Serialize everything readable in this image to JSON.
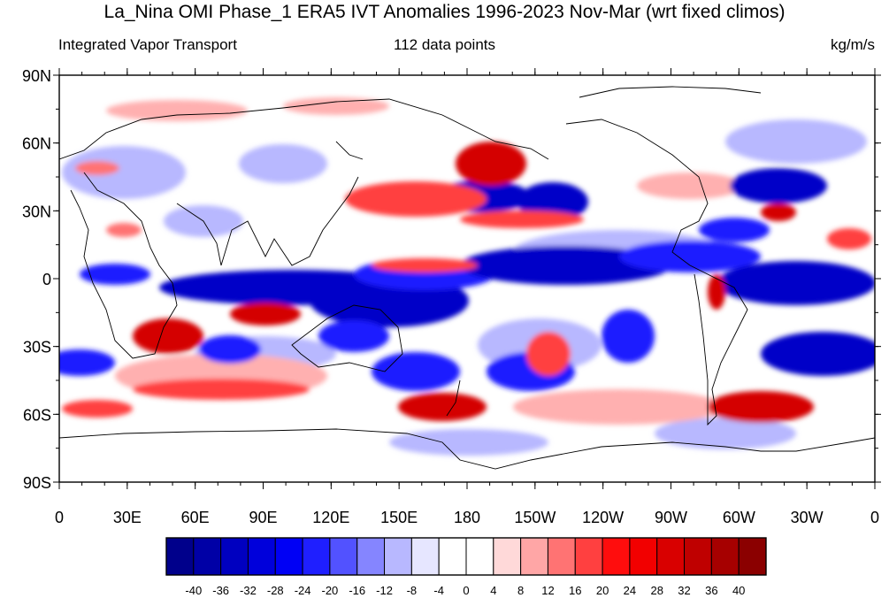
{
  "title": "La_Nina OMI Phase_1 ERA5 IVT Anomalies 1996-2023 Nov-Mar (wrt fixed climos)",
  "subtitle_left": "Integrated Vapor Transport",
  "subtitle_center": "112 data points",
  "subtitle_right": "kg/m/s",
  "lat_labels": [
    "90N",
    "60N",
    "30N",
    "0",
    "30S",
    "60S",
    "90S"
  ],
  "lon_labels": [
    "0",
    "30E",
    "60E",
    "90E",
    "120E",
    "150E",
    "180",
    "150W",
    "120W",
    "90W",
    "60W",
    "30W",
    "0"
  ],
  "colorbar": {
    "levels": [
      "-40",
      "-36",
      "-32",
      "-28",
      "-24",
      "-20",
      "-16",
      "-12",
      "-8",
      "-4",
      "0",
      "4",
      "8",
      "12",
      "16",
      "20",
      "24",
      "28",
      "32",
      "36",
      "40"
    ],
    "colors": [
      "#00008b",
      "#0000a6",
      "#0000c0",
      "#0000db",
      "#0000f5",
      "#1f1fff",
      "#5252ff",
      "#8585ff",
      "#b8b8ff",
      "#e6e6ff",
      "#ffffff",
      "#ffffff",
      "#ffd9d9",
      "#ffa6a6",
      "#ff7373",
      "#ff4040",
      "#ff0d0d",
      "#f20000",
      "#d90000",
      "#bf0000",
      "#a60000",
      "#8b0000"
    ]
  },
  "colors": {
    "strong_blue": "#0000c8",
    "blue": "#2a2aff",
    "light_blue": "#b8b8ff",
    "strong_red": "#d40000",
    "red": "#ff4040",
    "light_red": "#ffb0b0"
  }
}
